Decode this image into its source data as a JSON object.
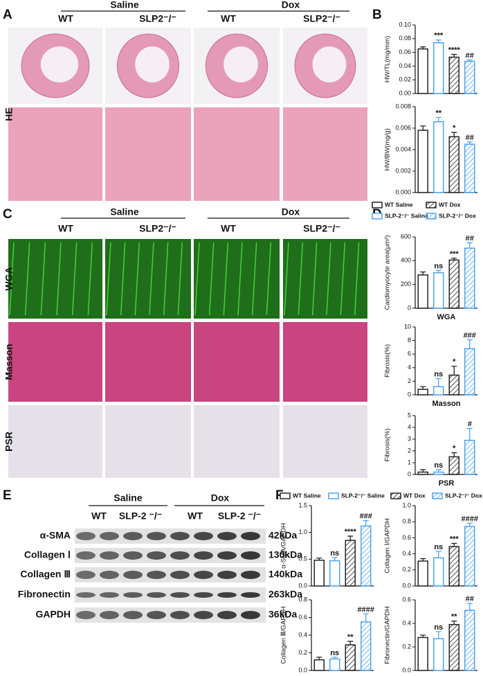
{
  "panels": [
    "A",
    "B",
    "C",
    "D",
    "E",
    "F"
  ],
  "panel_a": {
    "groups": [
      "Saline",
      "Dox"
    ],
    "columns": [
      "WT",
      "SLP2⁻/⁻",
      "WT",
      "SLP2⁻/⁻"
    ],
    "rows": [
      "HE"
    ]
  },
  "panel_c": {
    "groups": [
      "Saline",
      "Dox"
    ],
    "columns": [
      "WT",
      "SLP2⁻/⁻",
      "WT",
      "SLP2⁻/⁻"
    ],
    "rows": [
      "WGA",
      "Masson",
      "PSR"
    ]
  },
  "legend_bd": [
    "WT Saline",
    "WT Dox",
    "SLP-2⁻/⁻ Saline",
    "SLP-2⁻/⁻ Dox"
  ],
  "legend_f": [
    "WT Saline",
    "SLP-2⁻/⁻ Saline",
    "WT Dox",
    "SLP-2⁻/⁻ Dox"
  ],
  "panel_e": {
    "groups": [
      "Saline",
      "Dox"
    ],
    "columns": [
      "WT",
      "SLP-2 ⁻/⁻",
      "WT",
      "SLP-2 ⁻/⁻"
    ],
    "proteins": [
      "α-SMA",
      "Collagen Ⅰ",
      "Collagen Ⅲ",
      "Fibronectin",
      "GAPDH"
    ],
    "sizes": [
      "42kDa",
      "130kDa",
      "140kDa",
      "263kDa",
      "36kDa"
    ]
  },
  "chart_data": [
    {
      "type": "bar",
      "ylabel": "HW/TL(mg/mm)",
      "values": [
        0.065,
        0.074,
        0.053,
        0.047
      ],
      "errors": [
        0.003,
        0.004,
        0.004,
        0.002
      ],
      "annotations": [
        null,
        "***",
        "****",
        "##"
      ],
      "colors": [
        "#222222",
        "#4da3f0",
        "#222222",
        "#4da3f0"
      ],
      "hatched": [
        false,
        false,
        true,
        true
      ],
      "ylim": [
        0,
        0.1
      ],
      "yticks": [
        {
          "value": 0,
          "label": "0.00"
        },
        0.02,
        0.04,
        0.06,
        0.08,
        {
          "value": 0.1,
          "label": "0.10"
        }
      ]
    },
    {
      "type": "bar",
      "ylabel": "HW/BW(mg/g)",
      "values": [
        0.0058,
        0.0066,
        0.0052,
        0.0045
      ],
      "errors": [
        0.0004,
        0.0004,
        0.0004,
        0.0002
      ],
      "annotations": [
        null,
        "**",
        "*",
        "##"
      ],
      "colors": [
        "#222222",
        "#4da3f0",
        "#222222",
        "#4da3f0"
      ],
      "hatched": [
        false,
        false,
        true,
        true
      ],
      "ylim": [
        0,
        0.008
      ],
      "yticks": [
        {
          "value": 0,
          "label": "0.000"
        },
        0.002,
        0.004,
        0.006,
        0.008
      ]
    },
    {
      "type": "bar",
      "ylabel": "Cardiomyocyte area(μm²)",
      "xlabel": "WGA",
      "values": [
        280,
        298,
        405,
        505
      ],
      "errors": [
        25,
        20,
        15,
        45
      ],
      "annotations": [
        null,
        "ns",
        "***",
        "##"
      ],
      "colors": [
        "#222222",
        "#4da3f0",
        "#222222",
        "#4da3f0"
      ],
      "hatched": [
        false,
        false,
        true,
        true
      ],
      "ylim": [
        0,
        600
      ],
      "yticks": [
        0,
        200,
        400,
        600
      ]
    },
    {
      "type": "bar",
      "ylabel": "Fibrosis(%)",
      "xlabel": "Masson",
      "values": [
        0.8,
        1.2,
        2.9,
        6.8
      ],
      "errors": [
        0.4,
        1.2,
        1.3,
        1.3
      ],
      "annotations": [
        null,
        "ns",
        "*",
        "###"
      ],
      "colors": [
        "#222222",
        "#4da3f0",
        "#222222",
        "#4da3f0"
      ],
      "hatched": [
        false,
        false,
        true,
        true
      ],
      "ylim": [
        0,
        10
      ],
      "yticks": [
        0,
        2,
        4,
        6,
        8,
        10
      ]
    },
    {
      "type": "bar",
      "ylabel": "Fibrosis(%)",
      "xlabel": "PSR",
      "values": [
        0.2,
        0.2,
        1.5,
        2.9
      ],
      "errors": [
        0.2,
        0.2,
        0.35,
        1.0
      ],
      "annotations": [
        null,
        "ns",
        "*",
        "#"
      ],
      "colors": [
        "#222222",
        "#4da3f0",
        "#222222",
        "#4da3f0"
      ],
      "hatched": [
        false,
        false,
        true,
        true
      ],
      "ylim": [
        0,
        5
      ],
      "yticks": [
        0,
        1,
        2,
        3,
        4,
        5
      ]
    },
    {
      "type": "bar",
      "ylabel": "α-SMA/GAPDH",
      "values": [
        0.48,
        0.47,
        0.85,
        1.12
      ],
      "errors": [
        0.04,
        0.06,
        0.08,
        0.1
      ],
      "annotations": [
        null,
        "ns",
        "****",
        "###"
      ],
      "colors": [
        "#222222",
        "#4da3f0",
        "#222222",
        "#4da3f0"
      ],
      "hatched": [
        false,
        false,
        true,
        true
      ],
      "ylim": [
        0,
        1.5
      ],
      "yticks": [
        {
          "value": 0,
          "label": "0.0"
        },
        0.5,
        {
          "value": 1,
          "label": "1.0"
        },
        1.5
      ]
    },
    {
      "type": "bar",
      "ylabel": "Collagen Ⅰ/GAPDH",
      "values": [
        0.31,
        0.35,
        0.49,
        0.74
      ],
      "errors": [
        0.03,
        0.08,
        0.04,
        0.04
      ],
      "annotations": [
        null,
        "ns",
        "***",
        "####"
      ],
      "colors": [
        "#222222",
        "#4da3f0",
        "#222222",
        "#4da3f0"
      ],
      "hatched": [
        false,
        false,
        true,
        true
      ],
      "ylim": [
        0,
        1
      ],
      "yticks": [
        {
          "value": 0,
          "label": "0.0"
        },
        0.2,
        0.4,
        0.6,
        0.8,
        {
          "value": 1,
          "label": "1.0"
        }
      ]
    },
    {
      "type": "bar",
      "ylabel": "Collagen Ⅲ/GAPDH",
      "values": [
        0.12,
        0.13,
        0.29,
        0.55
      ],
      "errors": [
        0.03,
        0.02,
        0.04,
        0.09
      ],
      "annotations": [
        null,
        "ns",
        "**",
        "####"
      ],
      "colors": [
        "#222222",
        "#4da3f0",
        "#222222",
        "#4da3f0"
      ],
      "hatched": [
        false,
        false,
        true,
        true
      ],
      "ylim": [
        0,
        0.8
      ],
      "yticks": [
        {
          "value": 0,
          "label": "0.0"
        },
        0.2,
        0.4,
        0.6,
        0.8
      ]
    },
    {
      "type": "bar",
      "ylabel": "Fibronectin/GAPDH",
      "values": [
        0.28,
        0.27,
        0.39,
        0.51
      ],
      "errors": [
        0.02,
        0.06,
        0.03,
        0.06
      ],
      "annotations": [
        null,
        "ns",
        "**",
        "##"
      ],
      "colors": [
        "#222222",
        "#4da3f0",
        "#222222",
        "#4da3f0"
      ],
      "hatched": [
        false,
        false,
        true,
        true
      ],
      "ylim": [
        0,
        0.6
      ],
      "yticks": [
        {
          "value": 0,
          "label": "0.0"
        },
        0.2,
        0.4,
        0.6
      ]
    }
  ]
}
